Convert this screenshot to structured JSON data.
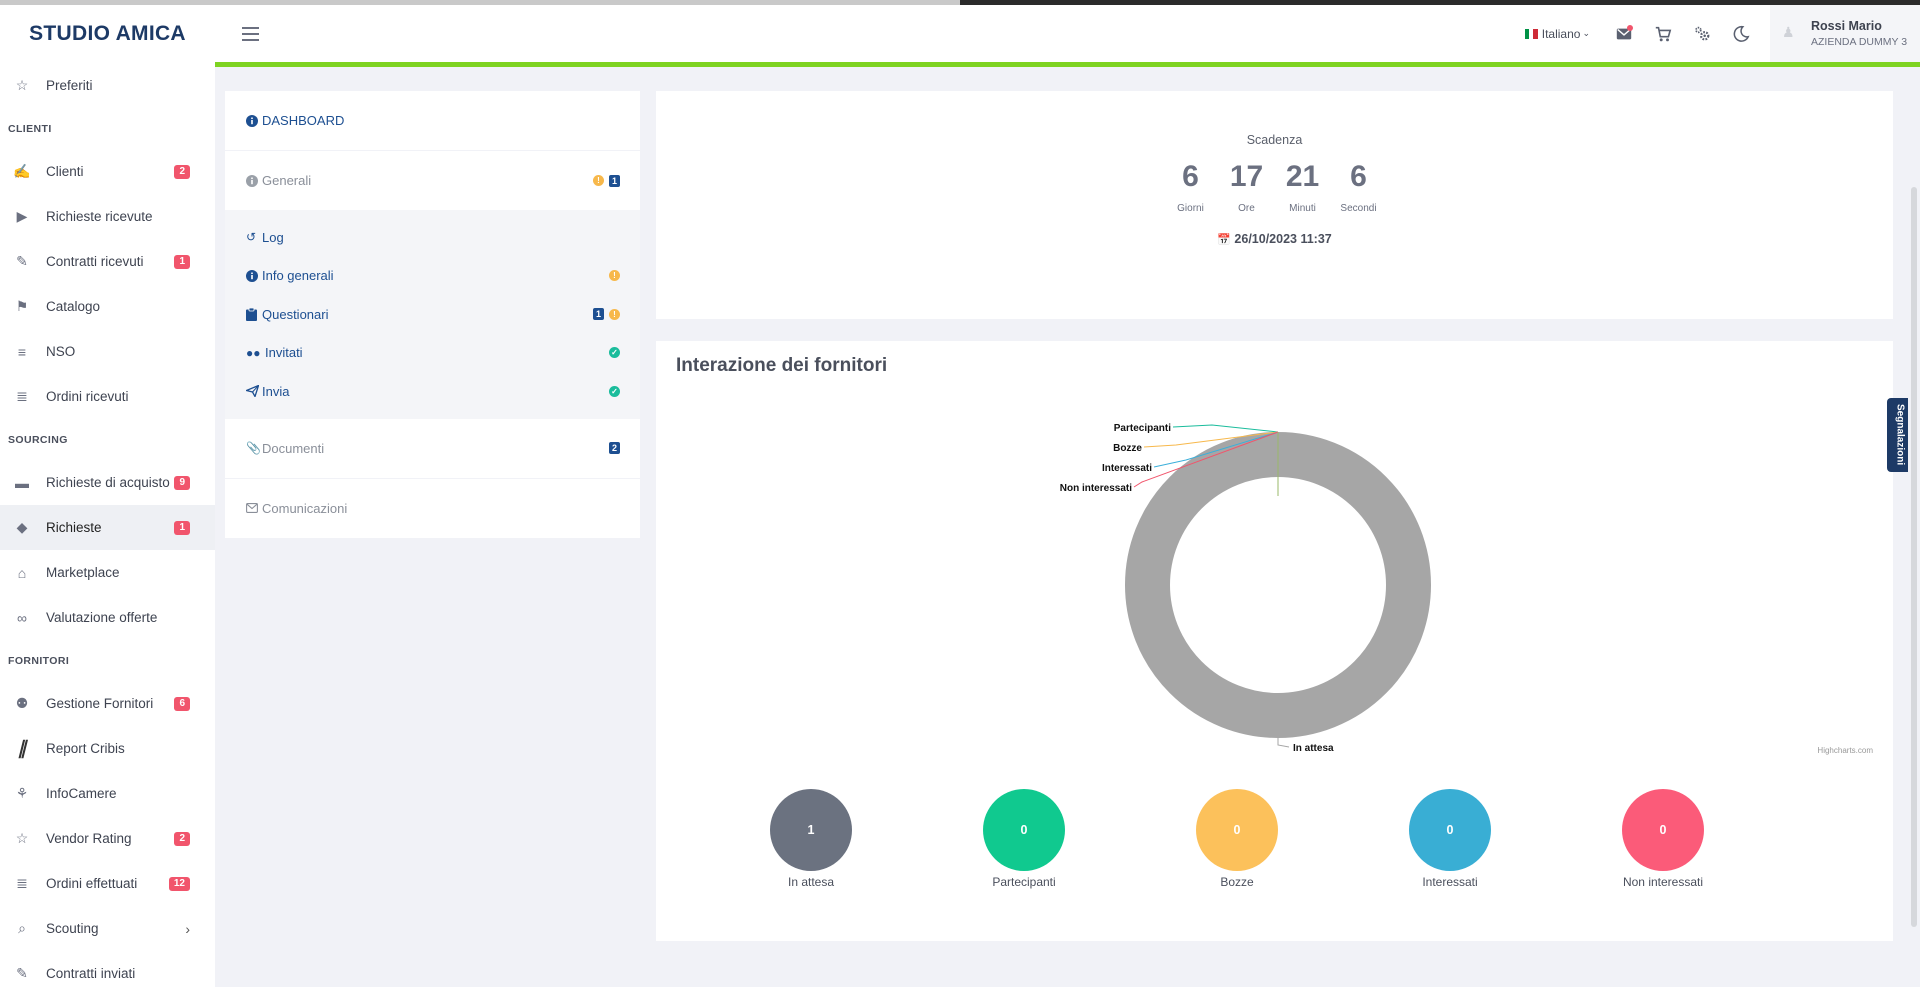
{
  "brand": "STUDIO AMICA",
  "sidebar": {
    "items": [
      {
        "name": "preferiti",
        "icon": "star-icon",
        "label": "Preferiti",
        "badge": ""
      },
      {
        "section": "CLIENTI"
      },
      {
        "name": "clienti",
        "icon": "handshake-icon",
        "label": "Clienti",
        "badge": "2"
      },
      {
        "name": "richieste-ricevute",
        "icon": "play-circle-icon",
        "label": "Richieste ricevute",
        "badge": ""
      },
      {
        "name": "contratti-ricevuti",
        "icon": "contract-icon",
        "label": "Contratti ricevuti",
        "badge": "1"
      },
      {
        "name": "catalogo",
        "icon": "tags-icon",
        "label": "Catalogo",
        "badge": ""
      },
      {
        "name": "nso",
        "icon": "list-icon",
        "label": "NSO",
        "badge": ""
      },
      {
        "name": "ordini-ricevuti",
        "icon": "receipt-icon",
        "label": "Ordini ricevuti",
        "badge": ""
      },
      {
        "section": "SOURCING"
      },
      {
        "name": "richieste-di-acquisto",
        "icon": "credit-card-icon",
        "label": "Richieste di acquisto",
        "badge": "9"
      },
      {
        "name": "richieste",
        "icon": "cube-icon",
        "label": "Richieste",
        "badge": "1",
        "active": true
      },
      {
        "name": "marketplace",
        "icon": "shopping-bag-icon",
        "label": "Marketplace",
        "badge": ""
      },
      {
        "name": "valutazione-offerte",
        "icon": "glasses-icon",
        "label": "Valutazione offerte",
        "badge": ""
      },
      {
        "section": "FORNITORI"
      },
      {
        "name": "gestione-fornitori",
        "icon": "users-icon",
        "label": "Gestione Fornitori",
        "badge": "6"
      },
      {
        "name": "report-cribis",
        "icon": "cribis-logo-icon",
        "label": "Report Cribis",
        "badge": ""
      },
      {
        "name": "infocamere",
        "icon": "infocamere-logo-icon",
        "label": "InfoCamere",
        "badge": ""
      },
      {
        "name": "vendor-rating",
        "icon": "star-icon",
        "label": "Vendor Rating",
        "badge": "2"
      },
      {
        "name": "ordini-effettuati",
        "icon": "receipt-icon",
        "label": "Ordini effettuati",
        "badge": "12"
      },
      {
        "name": "scouting",
        "icon": "search-icon",
        "label": "Scouting",
        "badge": "",
        "chevron": true
      },
      {
        "name": "contratti-inviati",
        "icon": "contract-icon",
        "label": "Contratti inviati",
        "badge": ""
      }
    ]
  },
  "header": {
    "language": "Italiano",
    "user_name": "Rossi Mario",
    "user_company": "AZIENDA DUMMY 3"
  },
  "panel": {
    "dashboard": "DASHBOARD",
    "generali": "Generali",
    "generali_count": "1",
    "log": "Log",
    "info_generali": "Info generali",
    "questionari": "Questionari",
    "questionari_count": "1",
    "invitati": "Invitati",
    "invia": "Invia",
    "documenti": "Documenti",
    "documenti_count": "2",
    "comunicazioni": "Comunicazioni"
  },
  "countdown": {
    "title": "Scadenza",
    "units": [
      {
        "value": "6",
        "label": "Giorni"
      },
      {
        "value": "17",
        "label": "Ore"
      },
      {
        "value": "21",
        "label": "Minuti"
      },
      {
        "value": "6",
        "label": "Secondi"
      }
    ],
    "date": "26/10/2023 11:37"
  },
  "interaction": {
    "title": "Interazione dei fornitori",
    "credit": "Highcharts.com",
    "side_tab": "Segnalazioni"
  },
  "chart_data": {
    "type": "pie",
    "title": "Interazione dei fornitori",
    "series": [
      {
        "name": "In attesa",
        "value": 1,
        "color": "#a6a6a6"
      },
      {
        "name": "Partecipanti",
        "value": 0,
        "color": "#1abc9c"
      },
      {
        "name": "Bozze",
        "value": 0,
        "color": "#f7b84b"
      },
      {
        "name": "Interessati",
        "value": 0,
        "color": "#3bafda"
      },
      {
        "name": "Non interessati",
        "value": 0,
        "color": "#f1556c"
      }
    ]
  },
  "status_circles": [
    {
      "value": "1",
      "label": "In attesa",
      "color": "#6b7280"
    },
    {
      "value": "0",
      "label": "Partecipanti",
      "color": "#10c98f"
    },
    {
      "value": "0",
      "label": "Bozze",
      "color": "#fcc15b"
    },
    {
      "value": "0",
      "label": "Interessati",
      "color": "#39aed4"
    },
    {
      "value": "0",
      "label": "Non interessati",
      "color": "#fb5b79"
    }
  ],
  "colors": {
    "accent_green": "#7ed321",
    "brand_navy": "#1d3a66",
    "badge_red": "#f1556c"
  }
}
